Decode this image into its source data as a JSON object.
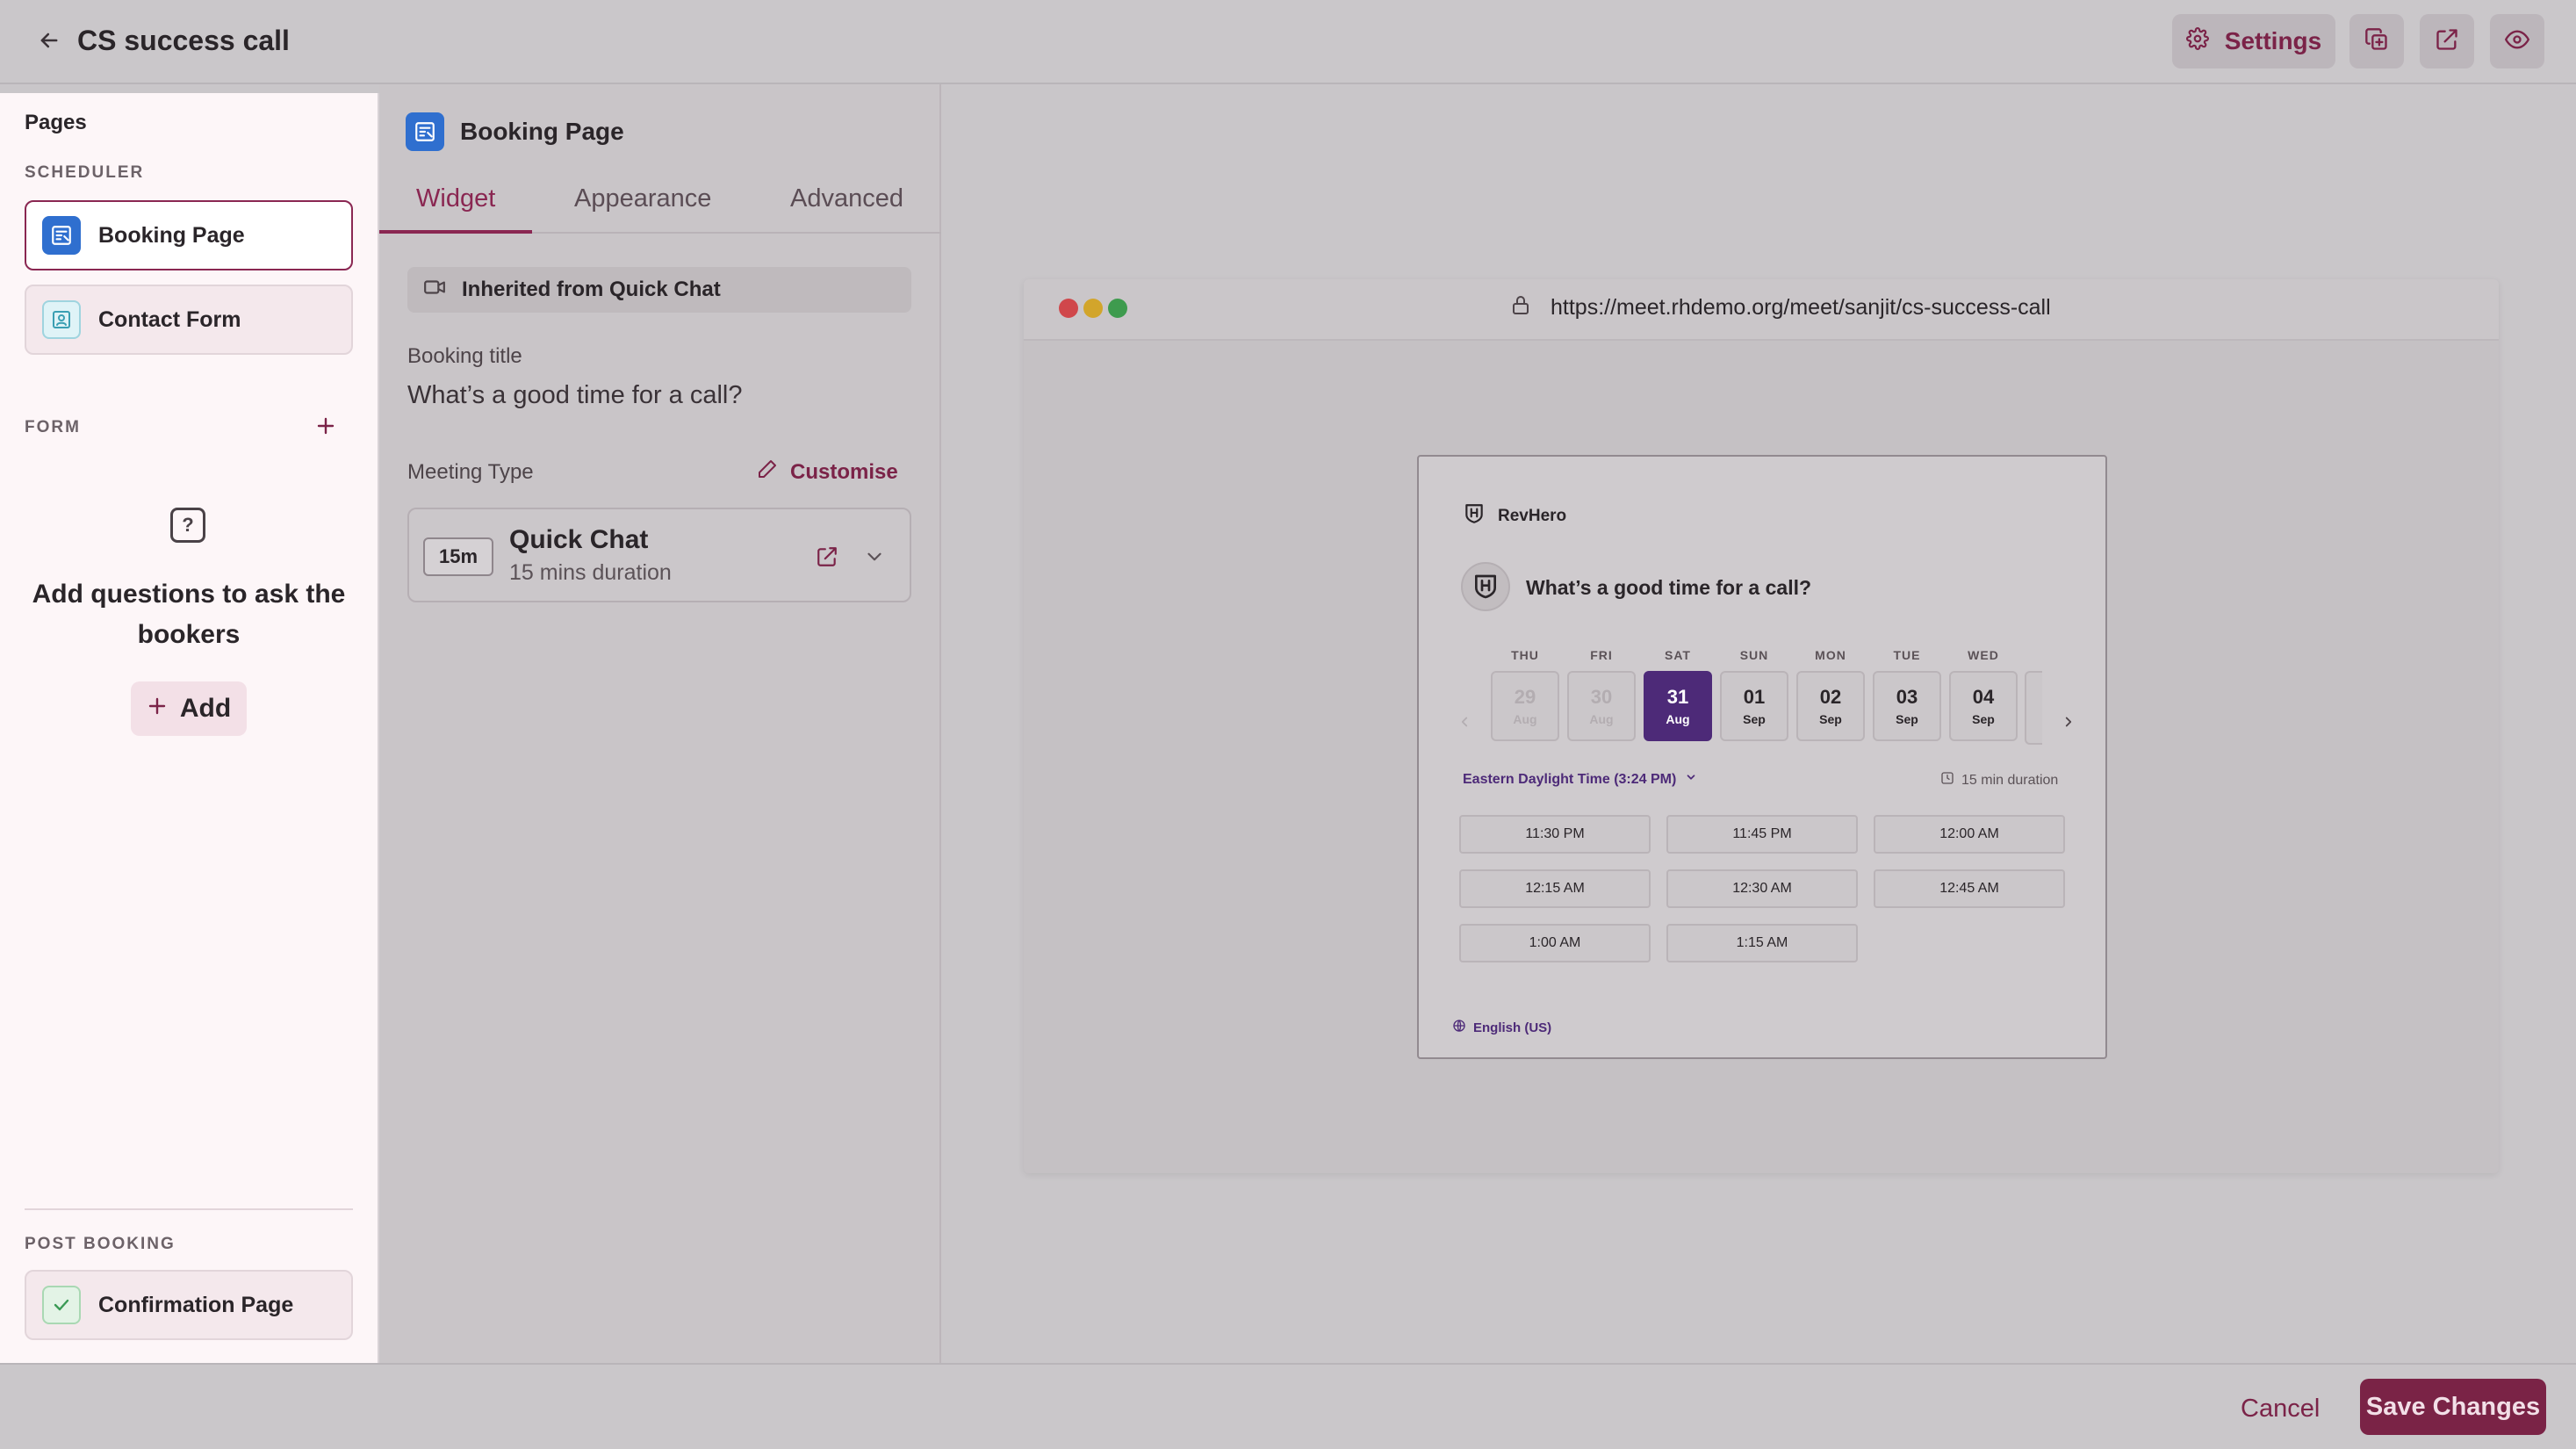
{
  "header": {
    "title": "CS success call",
    "settings_label": "Settings",
    "icons": [
      "back-arrow-icon",
      "gear-icon",
      "duplicate-icon",
      "share-icon",
      "eye-icon"
    ]
  },
  "pages_panel": {
    "title": "Pages",
    "scheduler_label": "SCHEDULER",
    "scheduler_items": [
      {
        "label": "Booking Page",
        "icon": "booking-page-icon",
        "active": true
      },
      {
        "label": "Contact Form",
        "icon": "contact-form-icon",
        "active": false
      }
    ],
    "form_label": "FORM",
    "empty_state": {
      "icon": "question-icon",
      "text": "Add questions to ask the bookers",
      "add_label": "Add"
    },
    "post_booking_label": "POST BOOKING",
    "post_booking_items": [
      {
        "label": "Confirmation Page",
        "icon": "check-icon"
      }
    ]
  },
  "config_panel": {
    "title": "Booking Page",
    "tabs": [
      {
        "label": "Widget",
        "active": true
      },
      {
        "label": "Appearance",
        "active": false
      },
      {
        "label": "Advanced",
        "active": false
      }
    ],
    "inherited_label": "Inherited from Quick Chat",
    "booking_title_label": "Booking title",
    "booking_title_value": "What’s a good time for a call?",
    "meeting_type_label": "Meeting Type",
    "customise_label": "Customise",
    "meeting": {
      "badge": "15m",
      "name": "Quick Chat",
      "duration": "15 mins duration"
    }
  },
  "preview": {
    "url": "https://meet.rhdemo.org/meet/sanjit/cs-success-call",
    "widget": {
      "brand": "RevHero",
      "question": "What’s a good time for a call?",
      "days": [
        {
          "name": "THU",
          "num": "29",
          "mon": "Aug",
          "state": "disabled"
        },
        {
          "name": "FRI",
          "num": "30",
          "mon": "Aug",
          "state": "disabled"
        },
        {
          "name": "SAT",
          "num": "31",
          "mon": "Aug",
          "state": "selected"
        },
        {
          "name": "SUN",
          "num": "01",
          "mon": "Sep",
          "state": "available"
        },
        {
          "name": "MON",
          "num": "02",
          "mon": "Sep",
          "state": "available"
        },
        {
          "name": "TUE",
          "num": "03",
          "mon": "Sep",
          "state": "available"
        },
        {
          "name": "WED",
          "num": "04",
          "mon": "Sep",
          "state": "available"
        }
      ],
      "timezone": "Eastern Daylight Time (3:24 PM)",
      "duration": "15 min duration",
      "slots": [
        "11:30 PM",
        "11:45 PM",
        "12:00 AM",
        "12:15 AM",
        "12:30 AM",
        "12:45 AM",
        "1:00 AM",
        "1:15 AM"
      ],
      "language": "English (US)"
    }
  },
  "footer": {
    "cancel_label": "Cancel",
    "save_label": "Save Changes"
  },
  "colors": {
    "accent": "#7a2346",
    "selected_day": "#4d2a78",
    "page_icon_blue": "#2f6fcf"
  }
}
